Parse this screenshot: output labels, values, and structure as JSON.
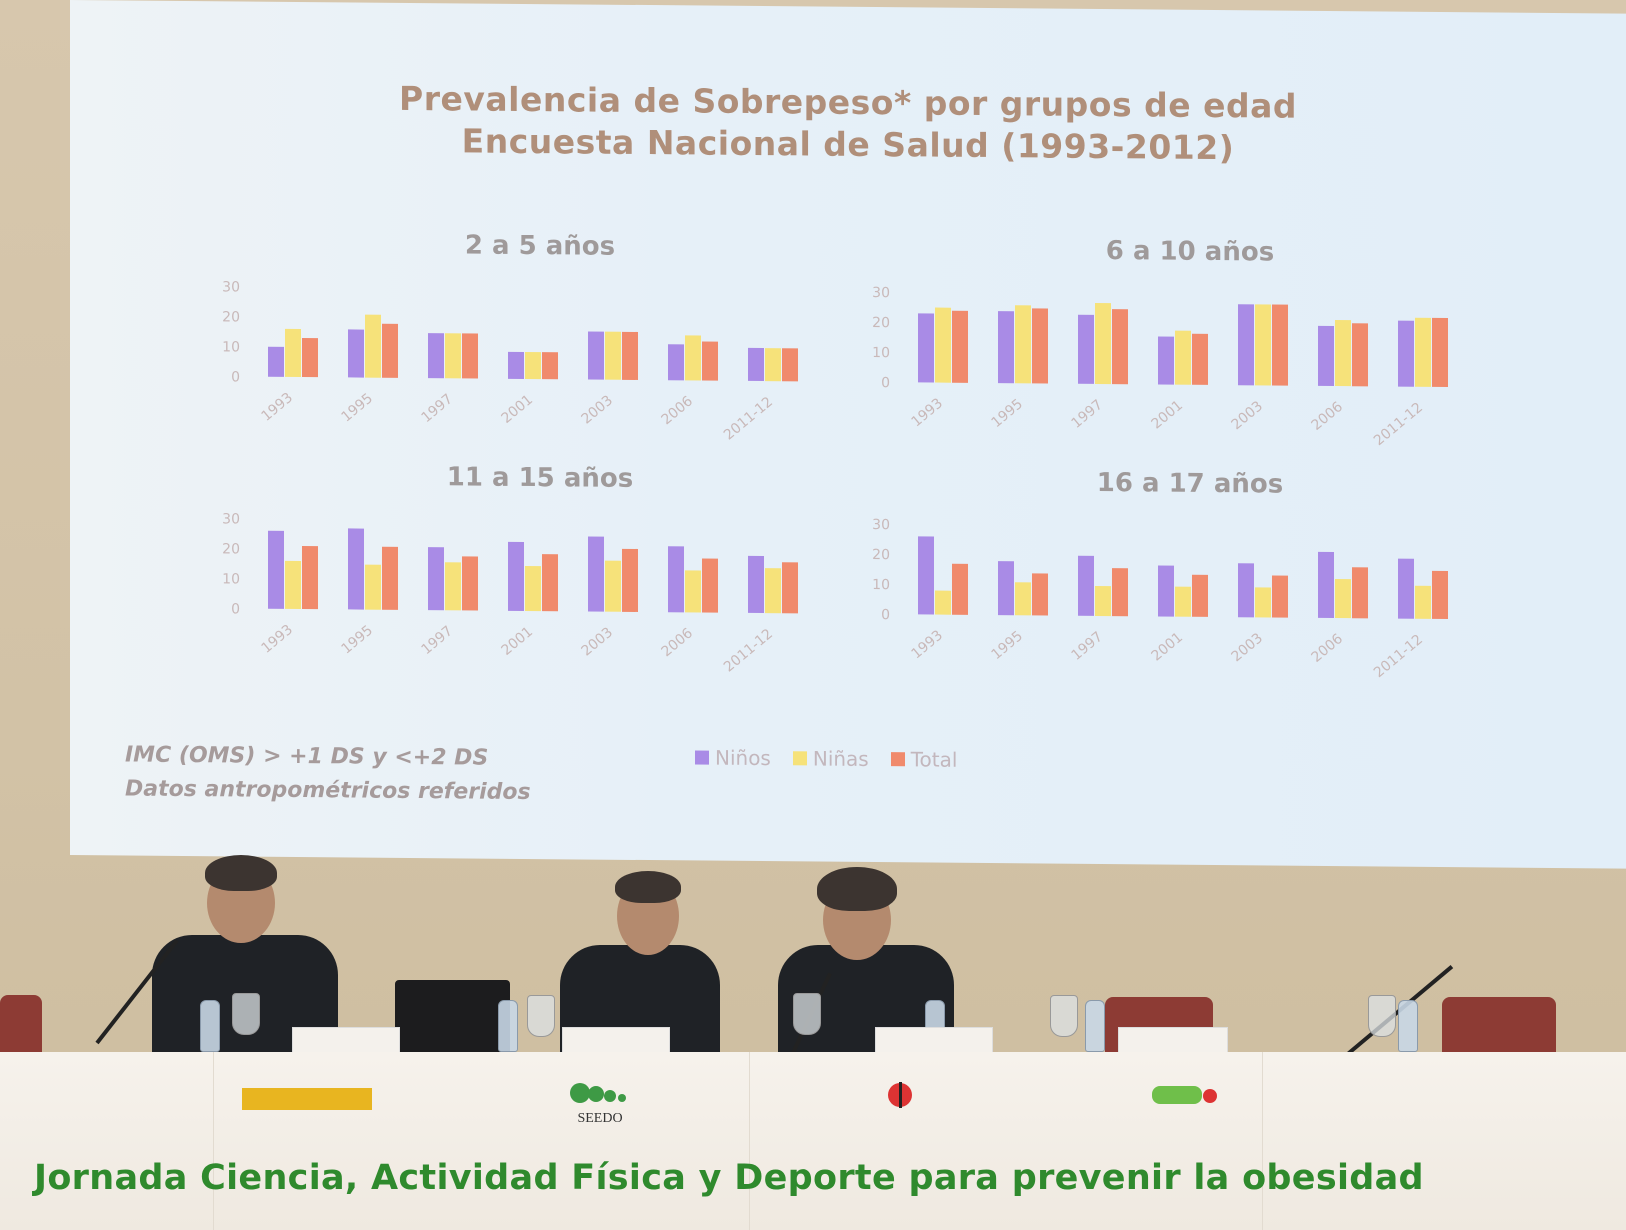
{
  "slide": {
    "title_line1": "Prevalencia de Sobrepeso* por grupos de edad",
    "title_line2": "Encuesta Nacional de Salud (1993-2012)",
    "footnote_line1": "IMC (OMS) > +1 DS y <+2 DS",
    "footnote_line2": "Datos antropométricos referidos"
  },
  "colors": {
    "ninos": "#a98be6",
    "ninas": "#f6e27a",
    "total": "#f08a6c"
  },
  "chart_data": [
    {
      "type": "bar",
      "title": "2 a 5 años",
      "categories": [
        "1993",
        "1995",
        "1997",
        "2001",
        "2003",
        "2006",
        "2011-12"
      ],
      "ylim": [
        0,
        30
      ],
      "yticks": [
        "0",
        "10",
        "20",
        "30"
      ],
      "series": [
        {
          "name": "Niños",
          "values": [
            10,
            16,
            15,
            9,
            16,
            12,
            11
          ]
        },
        {
          "name": "Niñas",
          "values": [
            16,
            21,
            15,
            9,
            16,
            15,
            11
          ]
        },
        {
          "name": "Total",
          "values": [
            13,
            18,
            15,
            9,
            16,
            13,
            11
          ]
        }
      ]
    },
    {
      "type": "bar",
      "title": "6 a 10 años",
      "categories": [
        "1993",
        "1995",
        "1997",
        "2001",
        "2003",
        "2006",
        "2011-12"
      ],
      "ylim": [
        0,
        30
      ],
      "yticks": [
        "0",
        "10",
        "20",
        "30"
      ],
      "series": [
        {
          "name": "Niños",
          "values": [
            23,
            24,
            23,
            16,
            27,
            20,
            22
          ]
        },
        {
          "name": "Niñas",
          "values": [
            25,
            26,
            27,
            18,
            27,
            22,
            23
          ]
        },
        {
          "name": "Total",
          "values": [
            24,
            25,
            25,
            17,
            27,
            21,
            23
          ]
        }
      ]
    },
    {
      "type": "bar",
      "title": "11 a 15 años",
      "categories": [
        "1993",
        "1995",
        "1997",
        "2001",
        "2003",
        "2006",
        "2011-12"
      ],
      "ylim": [
        0,
        30
      ],
      "yticks": [
        "0",
        "10",
        "20",
        "30"
      ],
      "series": [
        {
          "name": "Niños",
          "values": [
            26,
            27,
            21,
            23,
            25,
            22,
            19
          ]
        },
        {
          "name": "Niñas",
          "values": [
            16,
            15,
            16,
            15,
            17,
            14,
            15
          ]
        },
        {
          "name": "Total",
          "values": [
            21,
            21,
            18,
            19,
            21,
            18,
            17
          ]
        }
      ]
    },
    {
      "type": "bar",
      "title": "16 a 17 años",
      "categories": [
        "1993",
        "1995",
        "1997",
        "2001",
        "2003",
        "2006",
        "2011-12"
      ],
      "ylim": [
        0,
        30
      ],
      "yticks": [
        "0",
        "10",
        "20",
        "30"
      ],
      "series": [
        {
          "name": "Niños",
          "values": [
            26,
            18,
            20,
            17,
            18,
            22,
            20
          ]
        },
        {
          "name": "Niñas",
          "values": [
            8,
            11,
            10,
            10,
            10,
            13,
            11
          ]
        },
        {
          "name": "Total",
          "values": [
            17,
            14,
            16,
            14,
            14,
            17,
            16
          ]
        }
      ]
    }
  ],
  "legend": [
    "Niños",
    "Niñas",
    "Total"
  ],
  "stage": {
    "banner": "Jornada Ciencia, Actividad Física y Deporte para prevenir la obesidad",
    "logo_seedo": "SEEDO"
  }
}
